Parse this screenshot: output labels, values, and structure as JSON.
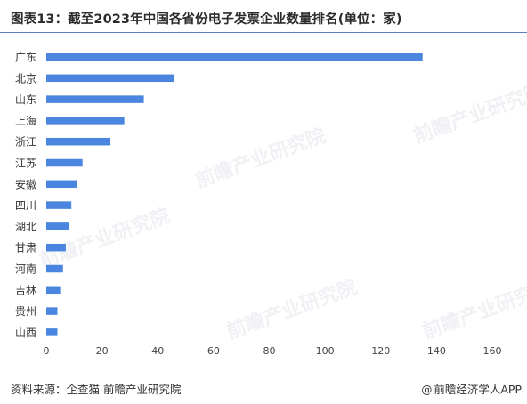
{
  "title": "图表13：截至2023年中国各省份电子发票企业数量排名(单位：家)",
  "footer": {
    "source": "资料来源：企查猫 前瞻产业研究院",
    "credit": "前瞻经济学人APP",
    "credit_icon": "at-icon"
  },
  "watermark_text": "前瞻产业研究院",
  "colors": {
    "bar": "#4a86e0",
    "title_rule": "#5b7fc0",
    "tick_text": "#444444"
  },
  "chart_data": {
    "type": "bar",
    "orientation": "horizontal",
    "title": "图表13：截至2023年中国各省份电子发票企业数量排名(单位：家)",
    "xlabel": "",
    "ylabel": "",
    "xlim": [
      0,
      160
    ],
    "xticks": [
      0,
      20,
      40,
      60,
      80,
      100,
      120,
      140,
      160
    ],
    "grid": false,
    "categories": [
      "广东",
      "北京",
      "山东",
      "上海",
      "浙江",
      "江苏",
      "安徽",
      "四川",
      "湖北",
      "甘肃",
      "河南",
      "吉林",
      "贵州",
      "山西"
    ],
    "values": [
      135,
      46,
      35,
      28,
      23,
      13,
      11,
      9,
      8,
      7,
      6,
      5,
      4,
      4
    ]
  }
}
